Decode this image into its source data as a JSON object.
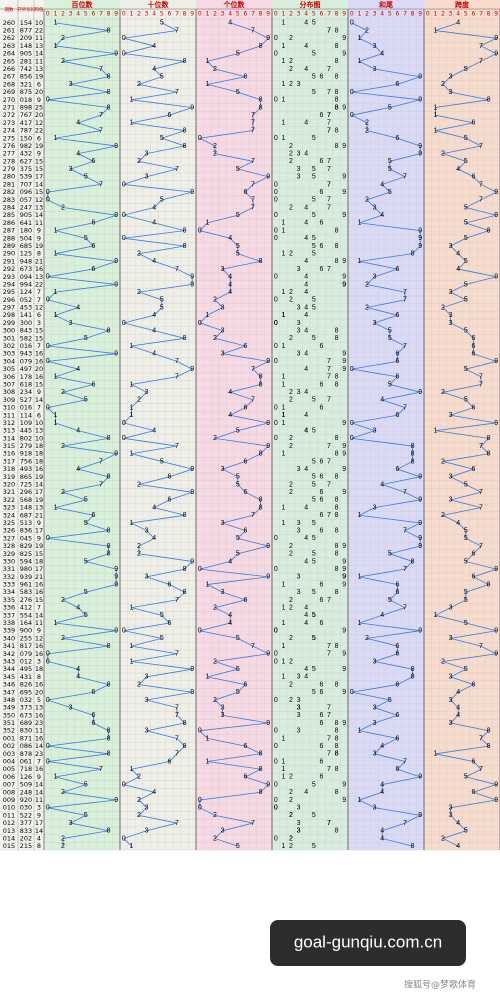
{
  "header": {
    "columns": [
      "期数",
      "开奖号码",
      "和值"
    ],
    "sections": [
      "百位数",
      "十位数",
      "个位数",
      "分布图",
      "和尾",
      "跨度"
    ],
    "digits": [
      "0",
      "1",
      "2",
      "3",
      "4",
      "5",
      "6",
      "7",
      "8",
      "9"
    ]
  },
  "rows": [
    [
      "260",
      "154",
      10,
      1,
      5,
      4,
      0,
      4
    ],
    [
      "261",
      "877",
      22,
      8,
      7,
      7,
      2,
      1
    ],
    [
      "262",
      "209",
      11,
      2,
      0,
      9,
      1,
      9
    ],
    [
      "263",
      "148",
      13,
      1,
      4,
      8,
      3,
      7
    ],
    [
      "264",
      "905",
      14,
      9,
      0,
      5,
      4,
      9
    ],
    [
      "265",
      "281",
      11,
      2,
      8,
      1,
      1,
      7
    ],
    [
      "266",
      "742",
      13,
      7,
      4,
      2,
      3,
      5
    ],
    [
      "267",
      "856",
      19,
      8,
      5,
      6,
      9,
      3
    ],
    [
      "268",
      "321",
      6,
      3,
      2,
      1,
      6,
      2
    ],
    [
      "269",
      "875",
      20,
      8,
      7,
      5,
      0,
      3
    ],
    [
      "270",
      "018",
      9,
      0,
      1,
      8,
      9,
      8
    ],
    [
      "271",
      "898",
      25,
      8,
      9,
      8,
      5,
      1
    ],
    [
      "272",
      "767",
      20,
      7,
      6,
      7,
      0,
      1
    ],
    [
      "273",
      "417",
      12,
      4,
      1,
      7,
      2,
      6
    ],
    [
      "274",
      "787",
      22,
      7,
      8,
      7,
      2,
      1
    ],
    [
      "275",
      "150",
      6,
      1,
      5,
      0,
      6,
      5
    ],
    [
      "276",
      "982",
      19,
      9,
      8,
      2,
      9,
      7
    ],
    [
      "277",
      "432",
      9,
      4,
      3,
      2,
      9,
      2
    ],
    [
      "278",
      "627",
      15,
      6,
      2,
      7,
      5,
      5
    ],
    [
      "279",
      "375",
      15,
      3,
      7,
      5,
      5,
      4
    ],
    [
      "280",
      "539",
      17,
      5,
      3,
      9,
      7,
      6
    ],
    [
      "281",
      "707",
      14,
      7,
      0,
      7,
      4,
      7
    ],
    [
      "282",
      "096",
      15,
      0,
      9,
      6,
      5,
      9
    ],
    [
      "283",
      "057",
      12,
      0,
      5,
      7,
      2,
      7
    ],
    [
      "284",
      "247",
      13,
      2,
      4,
      7,
      3,
      5
    ],
    [
      "285",
      "905",
      14,
      9,
      0,
      5,
      4,
      9
    ],
    [
      "286",
      "641",
      11,
      6,
      4,
      1,
      1,
      5
    ],
    [
      "287",
      "180",
      9,
      1,
      8,
      0,
      9,
      8
    ],
    [
      "288",
      "504",
      9,
      5,
      0,
      4,
      9,
      5
    ],
    [
      "289",
      "685",
      19,
      6,
      8,
      5,
      9,
      3
    ],
    [
      "290",
      "125",
      8,
      1,
      2,
      5,
      8,
      4
    ],
    [
      "291",
      "948",
      21,
      9,
      4,
      8,
      1,
      5
    ],
    [
      "292",
      "673",
      16,
      6,
      7,
      3,
      6,
      4
    ],
    [
      "293",
      "094",
      13,
      0,
      9,
      4,
      3,
      9
    ],
    [
      "294",
      "994",
      22,
      9,
      9,
      4,
      2,
      5
    ],
    [
      "295",
      "124",
      7,
      1,
      2,
      4,
      7,
      3
    ],
    [
      "296",
      "052",
      7,
      0,
      5,
      2,
      7,
      5
    ],
    [
      "297",
      "453",
      12,
      4,
      5,
      3,
      2,
      2
    ],
    [
      "298",
      "141",
      6,
      1,
      4,
      1,
      6,
      3
    ],
    [
      "299",
      "300",
      3,
      3,
      0,
      0,
      3,
      3
    ],
    [
      "300",
      "843",
      15,
      8,
      4,
      3,
      5,
      5
    ],
    [
      "301",
      "582",
      15,
      5,
      8,
      2,
      5,
      6
    ],
    [
      "302",
      "016",
      7,
      0,
      1,
      6,
      7,
      6
    ],
    [
      "303",
      "943",
      16,
      9,
      4,
      3,
      6,
      6
    ],
    [
      "304",
      "079",
      16,
      0,
      7,
      9,
      6,
      9
    ],
    [
      "305",
      "497",
      20,
      4,
      9,
      7,
      0,
      5
    ],
    [
      "306",
      "178",
      16,
      1,
      7,
      8,
      6,
      7
    ],
    [
      "307",
      "618",
      15,
      6,
      1,
      8,
      5,
      7
    ],
    [
      "308",
      "234",
      9,
      2,
      3,
      4,
      9,
      2
    ],
    [
      "309",
      "527",
      14,
      5,
      2,
      7,
      4,
      5
    ],
    [
      "310",
      "016",
      7,
      0,
      1,
      6,
      7,
      6
    ],
    [
      "311",
      "114",
      6,
      1,
      1,
      4,
      6,
      3
    ],
    [
      "312",
      "109",
      10,
      1,
      0,
      9,
      0,
      9
    ],
    [
      "313",
      "445",
      13,
      4,
      4,
      5,
      3,
      1
    ],
    [
      "314",
      "802",
      10,
      8,
      0,
      2,
      0,
      8
    ],
    [
      "315",
      "279",
      18,
      2,
      7,
      9,
      8,
      7
    ],
    [
      "316",
      "918",
      18,
      9,
      1,
      8,
      8,
      8
    ],
    [
      "317",
      "756",
      18,
      7,
      5,
      6,
      8,
      2
    ],
    [
      "318",
      "493",
      16,
      4,
      9,
      3,
      6,
      6
    ],
    [
      "319",
      "865",
      19,
      8,
      6,
      5,
      9,
      3
    ],
    [
      "320",
      "725",
      14,
      7,
      2,
      5,
      4,
      5
    ],
    [
      "321",
      "296",
      17,
      2,
      9,
      6,
      7,
      7
    ],
    [
      "322",
      "568",
      19,
      5,
      6,
      8,
      9,
      3
    ],
    [
      "323",
      "148",
      13,
      1,
      4,
      8,
      3,
      7
    ],
    [
      "324",
      "687",
      21,
      6,
      8,
      7,
      1,
      2
    ],
    [
      "325",
      "513",
      9,
      5,
      1,
      3,
      9,
      4
    ],
    [
      "326",
      "836",
      17,
      8,
      3,
      6,
      7,
      5
    ],
    [
      "327",
      "045",
      9,
      0,
      4,
      5,
      9,
      5
    ],
    [
      "328",
      "829",
      19,
      8,
      2,
      9,
      9,
      7
    ],
    [
      "329",
      "825",
      15,
      8,
      2,
      5,
      5,
      6
    ],
    [
      "330",
      "594",
      18,
      5,
      9,
      4,
      8,
      5
    ],
    [
      "331",
      "980",
      17,
      9,
      8,
      0,
      7,
      9
    ],
    [
      "332",
      "939",
      21,
      9,
      3,
      9,
      1,
      6
    ],
    [
      "333",
      "961",
      16,
      9,
      6,
      1,
      6,
      8
    ],
    [
      "334",
      "583",
      16,
      5,
      8,
      3,
      6,
      5
    ],
    [
      "335",
      "276",
      15,
      2,
      7,
      6,
      5,
      5
    ],
    [
      "336",
      "412",
      7,
      4,
      1,
      2,
      7,
      3
    ],
    [
      "337",
      "554",
      14,
      5,
      5,
      4,
      4,
      1
    ],
    [
      "338",
      "164",
      11,
      1,
      6,
      4,
      1,
      5
    ],
    [
      "339",
      "900",
      9,
      9,
      0,
      0,
      9,
      9
    ],
    [
      "340",
      "255",
      12,
      2,
      5,
      5,
      2,
      3
    ],
    [
      "341",
      "817",
      16,
      8,
      1,
      7,
      6,
      7
    ],
    [
      "342",
      "079",
      16,
      0,
      7,
      9,
      6,
      9
    ],
    [
      "343",
      "012",
      3,
      0,
      1,
      2,
      3,
      2
    ],
    [
      "344",
      "495",
      18,
      4,
      9,
      5,
      8,
      5
    ],
    [
      "345",
      "431",
      8,
      4,
      3,
      1,
      8,
      3
    ],
    [
      "346",
      "826",
      16,
      8,
      2,
      6,
      6,
      6
    ],
    [
      "347",
      "695",
      20,
      6,
      9,
      5,
      0,
      4
    ],
    [
      "348",
      "032",
      5,
      0,
      3,
      2,
      5,
      3
    ],
    [
      "349",
      "373",
      13,
      3,
      7,
      3,
      3,
      4
    ],
    [
      "350",
      "673",
      16,
      6,
      7,
      3,
      6,
      4
    ],
    [
      "351",
      "689",
      23,
      6,
      8,
      9,
      3,
      3
    ],
    [
      "352",
      "830",
      11,
      8,
      3,
      0,
      1,
      8
    ],
    [
      "001",
      "871",
      16,
      8,
      7,
      1,
      6,
      7
    ],
    [
      "002",
      "086",
      14,
      0,
      8,
      6,
      4,
      8
    ],
    [
      "003",
      "878",
      23,
      8,
      7,
      8,
      3,
      1
    ],
    [
      "004",
      "061",
      7,
      0,
      6,
      1,
      7,
      6
    ],
    [
      "005",
      "718",
      16,
      7,
      1,
      8,
      6,
      7
    ],
    [
      "006",
      "126",
      9,
      1,
      2,
      6,
      9,
      5
    ],
    [
      "007",
      "509",
      14,
      5,
      0,
      9,
      4,
      9
    ],
    [
      "008",
      "248",
      14,
      2,
      4,
      8,
      4,
      6
    ],
    [
      "009",
      "920",
      11,
      9,
      2,
      0,
      1,
      9
    ],
    [
      "010",
      "030",
      3,
      0,
      3,
      0,
      3,
      3
    ],
    [
      "011",
      "522",
      9,
      5,
      2,
      2,
      9,
      3
    ],
    [
      "012",
      "377",
      17,
      3,
      7,
      7,
      7,
      4
    ],
    [
      "013",
      "833",
      14,
      8,
      3,
      3,
      4,
      5
    ],
    [
      "014",
      "202",
      4,
      2,
      0,
      2,
      4,
      2
    ],
    [
      "015",
      "215",
      8,
      2,
      1,
      5,
      8,
      4
    ]
  ],
  "watermark": "goal-gunqiu.com.cn",
  "credit": "搜狐号@梦歌体育"
}
